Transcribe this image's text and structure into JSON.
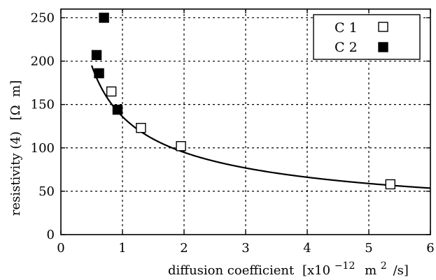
{
  "chart_data": {
    "type": "scatter",
    "title": "",
    "xlabel": "diffusion coefficient",
    "xlabel_unit": "[x10",
    "xlabel_unit_exp": "−12",
    "xlabel_unit_m": "m",
    "xlabel_unit_m_exp": "2",
    "xlabel_unit_tail": "/s]",
    "ylabel": "resistivity (4)",
    "ylabel_unit": "[Ω  m]",
    "xlim": [
      0,
      6
    ],
    "ylim": [
      0,
      260
    ],
    "xticks": [
      0,
      1,
      2,
      3,
      4,
      5,
      6
    ],
    "yticks": [
      0,
      50,
      100,
      150,
      200,
      250
    ],
    "grid": true,
    "legend_position": "top-right",
    "series": [
      {
        "name": "C 1",
        "marker": "open-square",
        "color": "#000000",
        "points": [
          [
            0.82,
            165
          ],
          [
            1.3,
            123
          ],
          [
            1.95,
            102
          ],
          [
            5.35,
            58
          ]
        ]
      },
      {
        "name": "C 2",
        "marker": "filled-square",
        "color": "#000000",
        "points": [
          [
            0.7,
            250
          ],
          [
            0.58,
            207
          ],
          [
            0.62,
            186
          ],
          [
            0.92,
            144
          ]
        ]
      }
    ],
    "fit_curve": {
      "form": "y = a / x^b",
      "a": 136,
      "b": 0.52
    }
  }
}
